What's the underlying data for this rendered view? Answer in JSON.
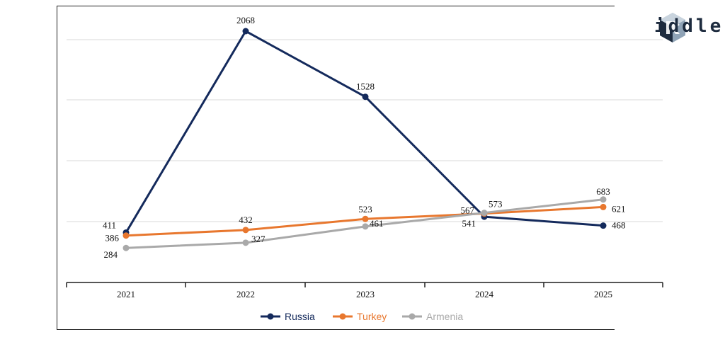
{
  "brand": {
    "logo_text": "iddle",
    "logo_icon": "cube-r-logo-icon",
    "colors": {
      "logo_dark": "#1d2b3e",
      "logo_light": "#8fa3b6"
    }
  },
  "chart_data": {
    "type": "line",
    "title": "",
    "xlabel": "",
    "ylabel": "",
    "x": [
      "2021",
      "2022",
      "2023",
      "2024",
      "2025"
    ],
    "ylim": [
      0,
      2200
    ],
    "grid": true,
    "legend_position": "bottom-center",
    "series": [
      {
        "name": "Russia",
        "color": "#142a5c",
        "values": [
          411,
          2068,
          1528,
          541,
          468
        ]
      },
      {
        "name": "Turkey",
        "color": "#e8772e",
        "values": [
          386,
          432,
          523,
          567,
          621
        ]
      },
      {
        "name": "Armenia",
        "color": "#a9a9a9",
        "values": [
          284,
          327,
          461,
          573,
          683
        ]
      }
    ]
  }
}
